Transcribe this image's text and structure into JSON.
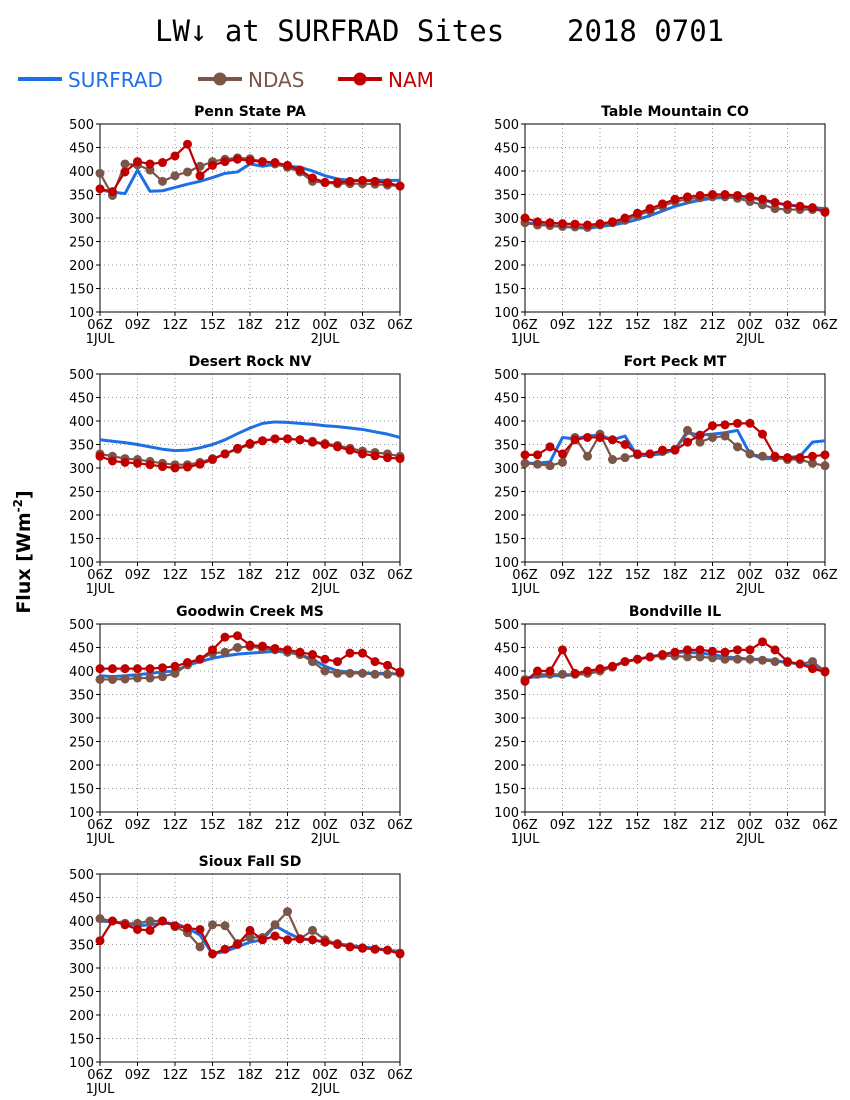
{
  "page": {
    "title": "LW↓ at SURFRAD Sites",
    "date": "2018 0701",
    "ylabel": "Flux [Wm",
    "ylabel_sup": "-2",
    "ylabel_close": "]"
  },
  "legend": [
    {
      "name": "SURFRAD",
      "color": "#1e6fe6",
      "marker": "none"
    },
    {
      "name": "NDAS",
      "color": "#7a5548",
      "marker": "circle"
    },
    {
      "name": "NAM",
      "color": "#c00000",
      "marker": "circle"
    }
  ],
  "axis": {
    "xticks": [
      "06Z",
      "09Z",
      "12Z",
      "15Z",
      "18Z",
      "21Z",
      "00Z",
      "03Z",
      "06Z"
    ],
    "xdates": [
      {
        "at": 0,
        "label": "1JUL"
      },
      {
        "at": 6,
        "label": "2JUL"
      }
    ],
    "ylim": [
      100,
      500
    ],
    "yticks": [
      100,
      150,
      200,
      250,
      300,
      350,
      400,
      450,
      500
    ],
    "grid": true
  },
  "chart_data": [
    {
      "type": "line",
      "title": "Penn State PA",
      "x_hours": [
        0,
        1,
        2,
        3,
        4,
        5,
        6,
        7,
        8,
        9,
        10,
        11,
        12,
        13,
        14,
        15,
        16,
        17,
        18,
        19,
        20,
        21,
        22,
        23,
        24
      ],
      "series": [
        {
          "name": "SURFRAD",
          "values": [
            360,
            355,
            352,
            402,
            357,
            358,
            365,
            372,
            378,
            386,
            395,
            398,
            415,
            410,
            414,
            410,
            408,
            400,
            390,
            383,
            380,
            380,
            380,
            380,
            380
          ]
        },
        {
          "name": "NDAS",
          "values": [
            395,
            348,
            415,
            413,
            402,
            378,
            390,
            398,
            410,
            420,
            425,
            428,
            426,
            420,
            415,
            408,
            398,
            378,
            375,
            373,
            373,
            373,
            372,
            370,
            368
          ]
        },
        {
          "name": "NAM",
          "values": [
            362,
            356,
            398,
            420,
            415,
            418,
            432,
            457,
            390,
            412,
            420,
            425,
            422,
            420,
            418,
            412,
            402,
            385,
            376,
            376,
            378,
            380,
            378,
            375,
            368
          ]
        }
      ]
    },
    {
      "type": "line",
      "title": "Table Mountain CO",
      "x_hours": [
        0,
        1,
        2,
        3,
        4,
        5,
        6,
        7,
        8,
        9,
        10,
        11,
        12,
        13,
        14,
        15,
        16,
        17,
        18,
        19,
        20,
        21,
        22,
        23,
        24
      ],
      "series": [
        {
          "name": "SURFRAD",
          "values": [
            290,
            287,
            284,
            282,
            280,
            278,
            282,
            285,
            290,
            297,
            305,
            315,
            325,
            332,
            338,
            342,
            344,
            345,
            343,
            338,
            332,
            328,
            325,
            322,
            320
          ]
        },
        {
          "name": "NDAS",
          "values": [
            290,
            285,
            284,
            282,
            281,
            280,
            285,
            290,
            295,
            305,
            315,
            325,
            335,
            340,
            343,
            345,
            345,
            342,
            335,
            328,
            320,
            318,
            318,
            318,
            315
          ]
        },
        {
          "name": "NAM",
          "values": [
            300,
            292,
            290,
            288,
            287,
            285,
            288,
            292,
            300,
            310,
            320,
            330,
            340,
            345,
            348,
            350,
            350,
            348,
            345,
            340,
            333,
            328,
            325,
            322,
            312
          ]
        }
      ]
    },
    {
      "type": "line",
      "title": "Desert Rock NV",
      "x_hours": [
        0,
        1,
        2,
        3,
        4,
        5,
        6,
        7,
        8,
        9,
        10,
        11,
        12,
        13,
        14,
        15,
        16,
        17,
        18,
        19,
        20,
        21,
        22,
        23,
        24
      ],
      "series": [
        {
          "name": "SURFRAD",
          "values": [
            360,
            357,
            354,
            350,
            345,
            340,
            337,
            338,
            343,
            350,
            360,
            373,
            385,
            395,
            398,
            397,
            395,
            393,
            390,
            388,
            385,
            382,
            377,
            372,
            365
          ]
        },
        {
          "name": "NDAS",
          "values": [
            330,
            325,
            320,
            318,
            314,
            310,
            307,
            307,
            312,
            320,
            330,
            340,
            350,
            358,
            362,
            362,
            360,
            357,
            352,
            348,
            342,
            336,
            333,
            330,
            325
          ]
        },
        {
          "name": "NAM",
          "values": [
            325,
            315,
            312,
            310,
            307,
            303,
            300,
            302,
            308,
            318,
            330,
            342,
            352,
            358,
            362,
            362,
            360,
            355,
            350,
            345,
            338,
            330,
            326,
            322,
            320
          ]
        }
      ]
    },
    {
      "type": "line",
      "title": "Fort Peck MT",
      "x_hours": [
        0,
        1,
        2,
        3,
        4,
        5,
        6,
        7,
        8,
        9,
        10,
        11,
        12,
        13,
        14,
        15,
        16,
        17,
        18,
        19,
        20,
        21,
        22,
        23,
        24
      ],
      "series": [
        {
          "name": "SURFRAD",
          "values": [
            310,
            310,
            313,
            365,
            362,
            368,
            370,
            360,
            368,
            325,
            328,
            330,
            340,
            375,
            370,
            372,
            375,
            380,
            330,
            320,
            320,
            322,
            325,
            355,
            358
          ]
        },
        {
          "name": "NDAS",
          "values": [
            310,
            308,
            305,
            312,
            365,
            325,
            372,
            318,
            322,
            328,
            330,
            335,
            340,
            380,
            355,
            365,
            368,
            345,
            330,
            325,
            322,
            318,
            318,
            310,
            305
          ]
        },
        {
          "name": "NAM",
          "values": [
            328,
            328,
            345,
            330,
            360,
            365,
            365,
            360,
            350,
            330,
            330,
            338,
            338,
            355,
            370,
            390,
            392,
            395,
            395,
            372,
            325,
            322,
            322,
            325,
            328
          ]
        }
      ]
    },
    {
      "type": "line",
      "title": "Goodwin Creek MS",
      "x_hours": [
        0,
        1,
        2,
        3,
        4,
        5,
        6,
        7,
        8,
        9,
        10,
        11,
        12,
        13,
        14,
        15,
        16,
        17,
        18,
        19,
        20,
        21,
        22,
        23,
        24
      ],
      "series": [
        {
          "name": "SURFRAD",
          "values": [
            390,
            388,
            390,
            392,
            395,
            398,
            400,
            412,
            420,
            427,
            432,
            436,
            438,
            440,
            442,
            440,
            435,
            425,
            410,
            400,
            398,
            396,
            395,
            395,
            393
          ]
        },
        {
          "name": "NDAS",
          "values": [
            382,
            382,
            383,
            385,
            385,
            388,
            395,
            413,
            425,
            438,
            440,
            450,
            452,
            448,
            445,
            440,
            435,
            420,
            400,
            395,
            395,
            395,
            393,
            393,
            395
          ]
        },
        {
          "name": "NAM",
          "values": [
            405,
            405,
            405,
            405,
            405,
            407,
            410,
            418,
            425,
            445,
            472,
            475,
            455,
            453,
            448,
            445,
            440,
            435,
            425,
            420,
            438,
            438,
            420,
            412,
            398
          ]
        }
      ]
    },
    {
      "type": "line",
      "title": "Bondville IL",
      "x_hours": [
        0,
        1,
        2,
        3,
        4,
        5,
        6,
        7,
        8,
        9,
        10,
        11,
        12,
        13,
        14,
        15,
        16,
        17,
        18,
        19,
        20,
        21,
        22,
        23,
        24
      ],
      "series": [
        {
          "name": "SURFRAD",
          "values": [
            385,
            388,
            390,
            390,
            392,
            395,
            400,
            410,
            420,
            425,
            430,
            435,
            440,
            440,
            438,
            435,
            430,
            428,
            425,
            425,
            422,
            418,
            415,
            410,
            400
          ]
        },
        {
          "name": "NDAS",
          "values": [
            382,
            393,
            393,
            393,
            393,
            395,
            400,
            408,
            420,
            425,
            430,
            432,
            432,
            430,
            430,
            428,
            425,
            425,
            425,
            423,
            420,
            418,
            415,
            420,
            400
          ]
        },
        {
          "name": "NAM",
          "values": [
            378,
            400,
            400,
            445,
            395,
            400,
            405,
            410,
            420,
            425,
            430,
            435,
            440,
            445,
            445,
            442,
            440,
            445,
            445,
            462,
            445,
            420,
            415,
            405,
            398
          ]
        }
      ]
    },
    {
      "type": "line",
      "title": "Sioux Fall SD",
      "x_hours": [
        0,
        1,
        2,
        3,
        4,
        5,
        6,
        7,
        8,
        9,
        10,
        11,
        12,
        13,
        14,
        15,
        16,
        17,
        18,
        19,
        20,
        21,
        22,
        23,
        24
      ],
      "series": [
        {
          "name": "SURFRAD",
          "values": [
            400,
            398,
            395,
            390,
            392,
            395,
            395,
            385,
            370,
            330,
            335,
            345,
            355,
            360,
            390,
            375,
            362,
            360,
            355,
            352,
            348,
            345,
            342,
            338,
            335
          ]
        },
        {
          "name": "NDAS",
          "values": [
            405,
            400,
            395,
            395,
            400,
            400,
            388,
            375,
            345,
            392,
            390,
            352,
            365,
            365,
            392,
            420,
            362,
            380,
            360,
            352,
            345,
            343,
            340,
            338,
            332
          ]
        },
        {
          "name": "NAM",
          "values": [
            358,
            400,
            392,
            382,
            380,
            400,
            390,
            385,
            382,
            330,
            340,
            350,
            380,
            360,
            368,
            360,
            362,
            360,
            355,
            350,
            345,
            342,
            340,
            338,
            330
          ]
        }
      ]
    }
  ]
}
